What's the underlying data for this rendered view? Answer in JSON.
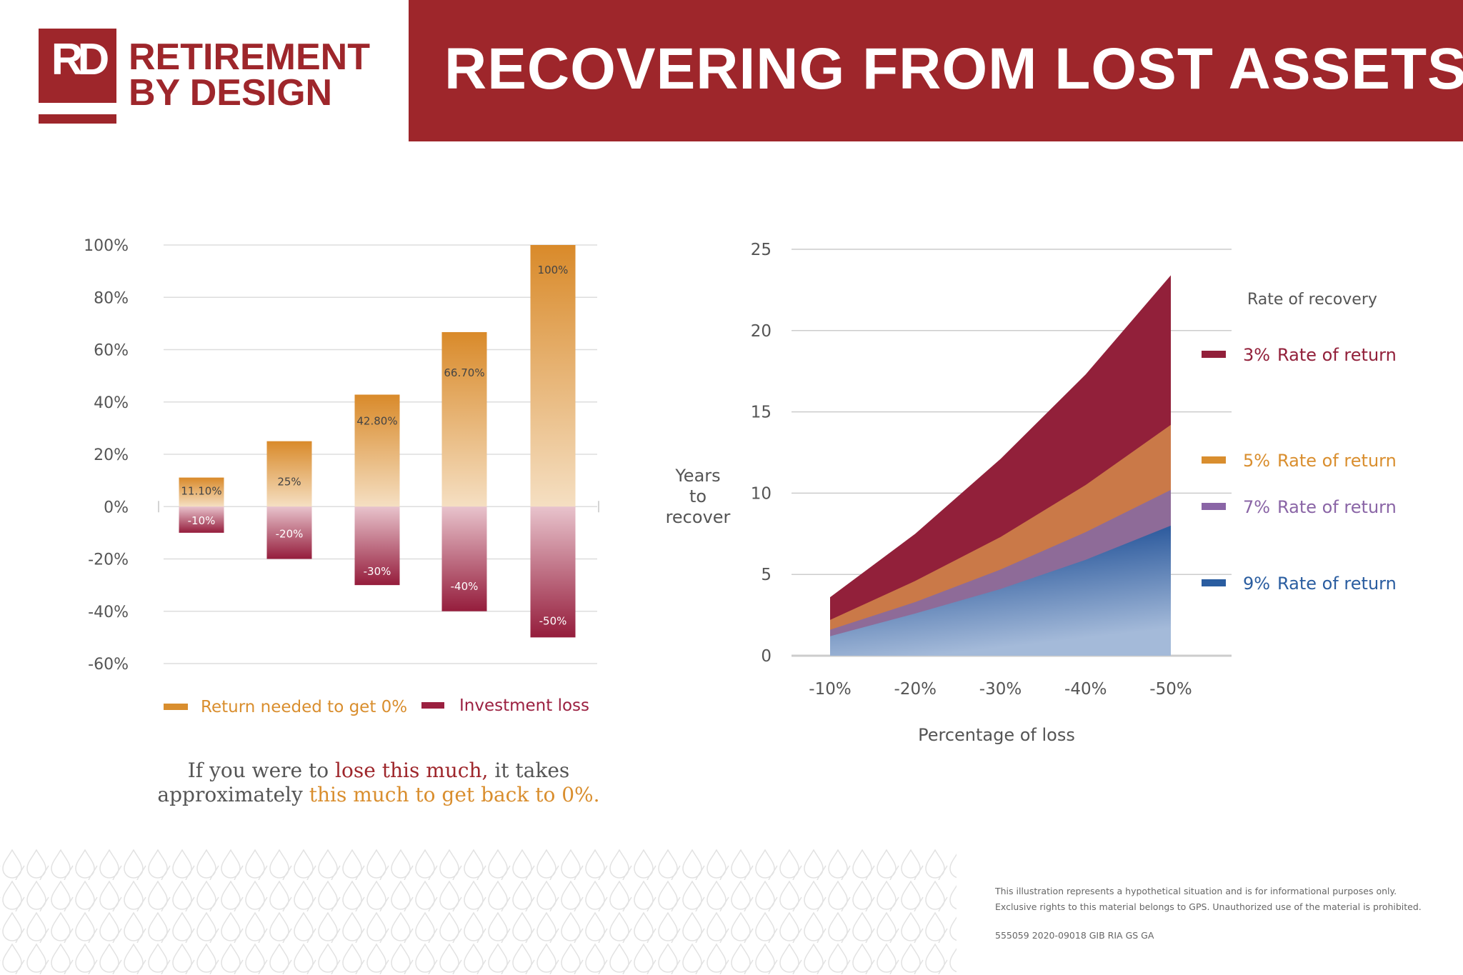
{
  "logo": {
    "mark": "RD",
    "line1": "RETIREMENT",
    "line2": "BY DESIGN"
  },
  "header": {
    "title": "RECOVERING FROM LOST ASSETS"
  },
  "colors": {
    "brand": "#9e262b",
    "return_needed": "#d98e2e",
    "investment_loss": "#9b2040",
    "r3": "#92203a",
    "r5": "#d98e2e",
    "r7": "#8a65a6",
    "r9": "#2a5da0"
  },
  "chart_data": [
    {
      "type": "bar",
      "categories": [
        "-10%",
        "-20%",
        "-30%",
        "-40%",
        "-50%"
      ],
      "ylim": [
        -60,
        100
      ],
      "yticks": [
        "100%",
        "80%",
        "60%",
        "40%",
        "20%",
        "0%",
        "-20%",
        "-40%",
        "-60%"
      ],
      "grid": true,
      "legend_placement": "bottom",
      "series": [
        {
          "name": "Return needed to get 0%",
          "values": [
            11.1,
            25,
            42.8,
            66.7,
            100
          ],
          "labels": [
            "11.10%",
            "25%",
            "42.80%",
            "66.70%",
            "100%"
          ]
        },
        {
          "name": "Investment loss",
          "values": [
            -10,
            -20,
            -30,
            -40,
            -50
          ],
          "labels": [
            "-10%",
            "-20%",
            "-30%",
            "-40%",
            "-50%"
          ]
        }
      ]
    },
    {
      "type": "area",
      "x": [
        "-10%",
        "-20%",
        "-30%",
        "-40%",
        "-50%"
      ],
      "xlabel": "Percentage of loss",
      "ylabel": "Years to recover",
      "ylim": [
        0,
        25
      ],
      "yticks": [
        "0",
        "5",
        "10",
        "15",
        "20",
        "25"
      ],
      "grid": true,
      "legend_title": "Rate of recovery",
      "legend_placement": "right",
      "series": [
        {
          "name": "Rate of return",
          "rate": "3%",
          "values": [
            3.6,
            7.5,
            12.1,
            17.3,
            23.4
          ]
        },
        {
          "name": "Rate of return",
          "rate": "5%",
          "values": [
            2.2,
            4.6,
            7.3,
            10.5,
            14.2
          ]
        },
        {
          "name": "Rate of return",
          "rate": "7%",
          "values": [
            1.6,
            3.3,
            5.3,
            7.6,
            10.2
          ]
        },
        {
          "name": "Rate of return",
          "rate": "9%",
          "values": [
            1.2,
            2.6,
            4.1,
            5.9,
            8.0
          ]
        }
      ]
    }
  ],
  "caption": {
    "p1": "If you were to ",
    "p2": "lose this much,",
    "p3": " it takes",
    "p4": "approximately ",
    "p5": "this much to get back to 0%."
  },
  "footer": {
    "line1": "This illustration represents a hypothetical situation and is for informational purposes only.",
    "line2": "Exclusive rights to this material belongs to GPS. Unauthorized use of the material is prohibited.",
    "code": "555059 2020-09018 GIB RIA GS GA"
  }
}
